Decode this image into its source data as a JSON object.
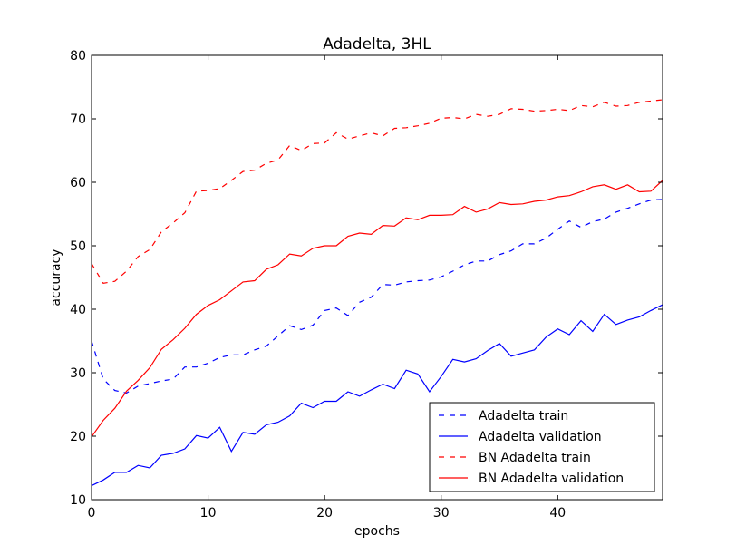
{
  "chart_data": {
    "type": "line",
    "title": "Adadelta, 3HL",
    "xlabel": "epochs",
    "ylabel": "accuracy",
    "xlim": [
      0,
      49
    ],
    "ylim": [
      10,
      80
    ],
    "xticks": [
      0,
      10,
      20,
      30,
      40
    ],
    "yticks": [
      10,
      20,
      30,
      40,
      50,
      60,
      70,
      80
    ],
    "grid": false,
    "legend_position": "lower-right",
    "x": [
      0,
      1,
      2,
      3,
      4,
      5,
      6,
      7,
      8,
      9,
      10,
      11,
      12,
      13,
      14,
      15,
      16,
      17,
      18,
      19,
      20,
      21,
      22,
      23,
      24,
      25,
      26,
      27,
      28,
      29,
      30,
      31,
      32,
      33,
      34,
      35,
      36,
      37,
      38,
      39,
      40,
      41,
      42,
      43,
      44,
      45,
      46,
      47,
      48,
      49
    ],
    "series": [
      {
        "name": "Adadelta train",
        "color": "#0000ff",
        "dash": "dashed",
        "values": [
          35.0,
          29.0,
          27.2,
          26.8,
          27.9,
          28.3,
          28.7,
          29.0,
          30.9,
          30.9,
          31.5,
          32.4,
          32.8,
          32.8,
          33.6,
          34.2,
          35.8,
          37.4,
          36.8,
          37.5,
          39.8,
          40.2,
          39.0,
          41.1,
          41.9,
          43.9,
          43.8,
          44.3,
          44.5,
          44.6,
          45.1,
          46.0,
          47.0,
          47.6,
          47.6,
          48.6,
          49.2,
          50.3,
          50.3,
          51.2,
          52.6,
          53.9,
          52.9,
          53.8,
          54.2,
          55.3,
          55.9,
          56.6,
          57.2,
          57.3
        ]
      },
      {
        "name": "Adadelta validation",
        "color": "#0000ff",
        "dash": "solid",
        "values": [
          12.2,
          13.1,
          14.3,
          14.3,
          15.4,
          15.0,
          17.0,
          17.3,
          18.0,
          20.1,
          19.7,
          21.4,
          17.6,
          20.6,
          20.3,
          21.8,
          22.2,
          23.2,
          25.2,
          24.5,
          25.5,
          25.5,
          27.0,
          26.3,
          27.3,
          28.2,
          27.5,
          30.4,
          29.8,
          27.0,
          29.4,
          32.1,
          31.7,
          32.2,
          33.5,
          34.6,
          32.6,
          33.1,
          33.6,
          35.6,
          36.9,
          36.0,
          38.2,
          36.5,
          39.2,
          37.6,
          38.3,
          38.8,
          39.8,
          40.7
        ]
      },
      {
        "name": "BN Adadelta train",
        "color": "#ff0000",
        "dash": "dashed",
        "values": [
          47.2,
          44.1,
          44.4,
          46.0,
          48.3,
          49.4,
          52.2,
          53.6,
          55.2,
          58.6,
          58.7,
          59.0,
          60.3,
          61.7,
          61.9,
          63.0,
          63.5,
          65.8,
          65.0,
          66.1,
          66.2,
          67.8,
          66.8,
          67.3,
          67.8,
          67.3,
          68.5,
          68.6,
          68.9,
          69.3,
          70.1,
          70.2,
          70.0,
          70.7,
          70.4,
          70.7,
          71.6,
          71.5,
          71.2,
          71.3,
          71.5,
          71.3,
          72.1,
          71.9,
          72.6,
          72.0,
          72.1,
          72.6,
          72.8,
          73.0
        ]
      },
      {
        "name": "BN Adadelta validation",
        "color": "#ff0000",
        "dash": "solid",
        "values": [
          19.9,
          22.5,
          24.4,
          27.1,
          28.8,
          30.8,
          33.7,
          35.2,
          37.0,
          39.2,
          40.6,
          41.5,
          42.9,
          44.3,
          44.5,
          46.3,
          47.0,
          48.7,
          48.4,
          49.6,
          50.0,
          50.0,
          51.5,
          52.0,
          51.8,
          53.2,
          53.1,
          54.4,
          54.1,
          54.8,
          54.8,
          54.9,
          56.2,
          55.3,
          55.8,
          56.8,
          56.5,
          56.6,
          57.0,
          57.2,
          57.7,
          57.9,
          58.5,
          59.3,
          59.6,
          58.9,
          59.6,
          58.5,
          58.6,
          60.3
        ]
      }
    ]
  }
}
